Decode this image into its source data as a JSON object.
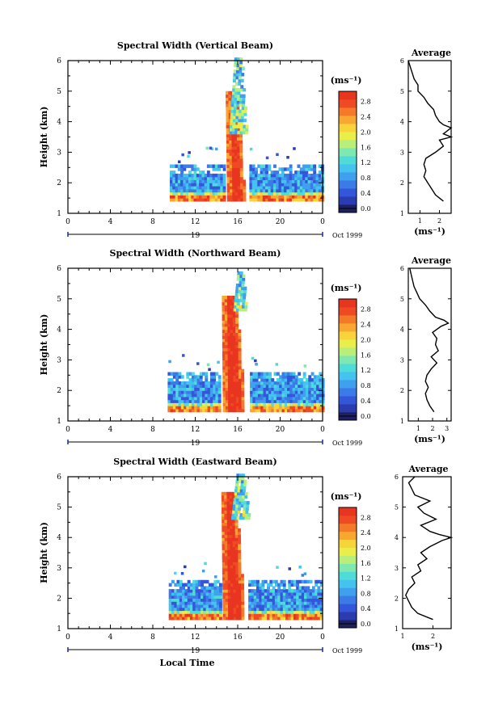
{
  "chart_data": [
    {
      "type": "heatmap",
      "title": "Spectral Width (Vertical Beam)",
      "ylabel": "Height (km)",
      "x_ticks": [
        "0",
        "4",
        "8",
        "12",
        "16",
        "20",
        "0"
      ],
      "y_ticks": [
        "1",
        "2",
        "3",
        "4",
        "5",
        "6"
      ],
      "date_tick": "19",
      "date_label": "Oct 1999",
      "xlim": [
        0,
        24
      ],
      "ylim": [
        1,
        6
      ],
      "colorbar": {
        "unit": "(ms⁻¹)",
        "ticks": [
          "2.8",
          "2.4",
          "2.0",
          "1.6",
          "1.2",
          "0.8",
          "0.4",
          "0.0"
        ],
        "range": [
          0,
          3.0
        ]
      },
      "profile": {
        "title": "Average",
        "xlabel": "(ms⁻¹)",
        "x_ticks": [
          "1",
          "2"
        ],
        "xlim": [
          0.4,
          2.6
        ],
        "y_ticks": [
          "1",
          "2",
          "3",
          "4",
          "5",
          "6"
        ],
        "heights": [
          1.4,
          1.5,
          1.6,
          1.8,
          2.0,
          2.2,
          2.4,
          2.6,
          2.8,
          3.0,
          3.2,
          3.4,
          3.5,
          3.6,
          3.7,
          3.8,
          3.9,
          4.0,
          4.2,
          4.4,
          4.6,
          4.8,
          5.0,
          5.2,
          5.4,
          5.6,
          5.8,
          6.0
        ],
        "values": [
          2.2,
          2.0,
          1.8,
          1.6,
          1.4,
          1.2,
          1.3,
          1.2,
          1.3,
          1.8,
          2.2,
          2.0,
          2.6,
          2.2,
          2.4,
          2.6,
          2.2,
          2.0,
          1.8,
          1.7,
          1.4,
          1.2,
          0.9,
          0.9,
          0.7,
          0.6,
          0.5,
          0.4
        ]
      },
      "features": {
        "layer": {
          "t0": 9.6,
          "t1": 24.0,
          "h0": 1.4,
          "h1": 2.6
        },
        "core": {
          "t_center": 15.8,
          "half_width": 0.8,
          "h_top": 4.9
        },
        "top_echo": {
          "t_center": 16.0,
          "half_width": 0.8,
          "h0": 3.6,
          "h1": 6.0
        }
      }
    },
    {
      "type": "heatmap",
      "title": "Spectral Width (Northward Beam)",
      "ylabel": "Height (km)",
      "x_ticks": [
        "0",
        "4",
        "8",
        "12",
        "16",
        "20",
        "0"
      ],
      "y_ticks": [
        "1",
        "2",
        "3",
        "4",
        "5",
        "6"
      ],
      "date_tick": "19",
      "date_label": "Oct 1999",
      "xlim": [
        0,
        24
      ],
      "ylim": [
        1,
        6
      ],
      "colorbar": {
        "unit": "(ms⁻¹)",
        "ticks": [
          "2.8",
          "2.4",
          "2.0",
          "1.6",
          "1.2",
          "0.8",
          "0.4",
          "0.0"
        ],
        "range": [
          0,
          3.0
        ]
      },
      "profile": {
        "title": "Average",
        "xlabel": "(ms⁻¹)",
        "x_ticks": [
          "1",
          "2",
          "3"
        ],
        "xlim": [
          0.3,
          3.3
        ],
        "y_ticks": [
          "1",
          "2",
          "3",
          "4",
          "5",
          "6"
        ],
        "heights": [
          1.3,
          1.5,
          1.7,
          1.9,
          2.1,
          2.3,
          2.5,
          2.7,
          2.9,
          3.1,
          3.3,
          3.5,
          3.7,
          3.9,
          4.1,
          4.2,
          4.3,
          4.4,
          4.6,
          4.8,
          5.0,
          5.2,
          5.4,
          5.6,
          5.8,
          6.0
        ],
        "values": [
          2.1,
          1.8,
          1.6,
          1.5,
          1.7,
          1.5,
          1.6,
          1.9,
          2.3,
          1.9,
          2.4,
          2.2,
          2.3,
          2.0,
          2.6,
          3.1,
          2.8,
          2.2,
          1.8,
          1.5,
          1.1,
          0.9,
          0.7,
          0.6,
          0.5,
          0.4
        ]
      },
      "features": {
        "layer": {
          "t0": 9.4,
          "t1": 24.0,
          "h0": 1.3,
          "h1": 2.6
        },
        "core": {
          "t_center": 15.6,
          "half_width": 1.0,
          "h_top": 5.0
        },
        "top_echo": {
          "t_center": 16.2,
          "half_width": 0.6,
          "h0": 4.6,
          "h1": 5.8
        }
      }
    },
    {
      "type": "heatmap",
      "title": "Spectral Width (Eastward Beam)",
      "ylabel": "Height (km)",
      "xlabel": "Local Time",
      "x_ticks": [
        "0",
        "4",
        "8",
        "12",
        "16",
        "20",
        "0"
      ],
      "y_ticks": [
        "1",
        "2",
        "3",
        "4",
        "5",
        "6"
      ],
      "date_tick": "19",
      "date_label": "Oct 1999",
      "xlim": [
        0,
        24
      ],
      "ylim": [
        1,
        6
      ],
      "colorbar": {
        "unit": "(ms⁻¹)",
        "ticks": [
          "2.8",
          "2.4",
          "2.0",
          "1.6",
          "1.2",
          "0.8",
          "0.4",
          "0.0"
        ],
        "range": [
          0,
          3.0
        ]
      },
      "profile": {
        "title": "Average",
        "xlabel": "(ms⁻¹)",
        "x_ticks": [
          "1",
          "2"
        ],
        "xlim": [
          1.0,
          2.6
        ],
        "y_ticks": [
          "1",
          "2",
          "3",
          "4",
          "5",
          "6"
        ],
        "heights": [
          1.3,
          1.5,
          1.7,
          1.9,
          2.1,
          2.3,
          2.5,
          2.7,
          2.9,
          3.1,
          3.3,
          3.5,
          3.7,
          3.9,
          4.0,
          4.1,
          4.2,
          4.4,
          4.6,
          4.8,
          5.0,
          5.2,
          5.4,
          5.6,
          5.8,
          6.0
        ],
        "values": [
          2.0,
          1.5,
          1.3,
          1.2,
          1.1,
          1.2,
          1.4,
          1.3,
          1.6,
          1.5,
          1.8,
          1.6,
          1.9,
          2.3,
          2.6,
          2.2,
          1.9,
          1.6,
          2.1,
          1.7,
          1.5,
          1.9,
          1.4,
          1.3,
          1.2,
          1.4
        ]
      },
      "features": {
        "layer": {
          "t0": 9.5,
          "t1": 24.0,
          "h0": 1.3,
          "h1": 2.6
        },
        "core": {
          "t_center": 15.6,
          "half_width": 1.0,
          "h_top": 5.4
        },
        "top_echo": {
          "t_center": 16.2,
          "half_width": 0.8,
          "h0": 4.6,
          "h1": 6.0
        }
      }
    }
  ]
}
